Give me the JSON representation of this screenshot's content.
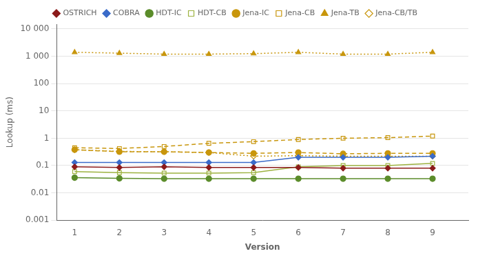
{
  "chart_data": {
    "type": "line",
    "x": [
      1,
      2,
      3,
      4,
      5,
      6,
      7,
      8,
      9
    ],
    "xlabel": "Version",
    "ylabel": "Lookup (ms)",
    "xlim": [
      0.6,
      9.8
    ],
    "xticks": [
      1,
      2,
      3,
      4,
      5,
      6,
      7,
      8,
      9
    ],
    "ylim": [
      0.001,
      15000
    ],
    "yticks": [
      0.001,
      0.01,
      0.1,
      1,
      10,
      100,
      {
        "value": 1000,
        "label": "1 000"
      },
      {
        "value": 10000,
        "label": "10 000"
      }
    ],
    "log": "y",
    "grid": "y",
    "legend": "top",
    "series": [
      {
        "name": "OSTRICH",
        "color": "#8B1A1A",
        "marker": "diamond",
        "line_style": "solid",
        "values": [
          0.09,
          0.085,
          0.09,
          0.085,
          0.085,
          0.085,
          0.08,
          0.08,
          0.08
        ]
      },
      {
        "name": "COBRA",
        "color": "#3A6BC9",
        "marker": "diamond",
        "line_style": "solid",
        "values": [
          0.13,
          0.13,
          0.13,
          0.13,
          0.13,
          0.2,
          0.2,
          0.2,
          0.22
        ]
      },
      {
        "name": "HDT-IC",
        "color": "#5B8C2A",
        "marker": "circle",
        "line_style": "solid",
        "values": [
          0.036,
          0.034,
          0.033,
          0.033,
          0.033,
          0.033,
          0.033,
          0.033,
          0.033
        ]
      },
      {
        "name": "HDT-CB",
        "color": "#9DB240",
        "marker": "open_square",
        "line_style": "solid",
        "values": [
          0.06,
          0.055,
          0.053,
          0.053,
          0.055,
          0.09,
          0.1,
          0.1,
          0.12
        ]
      },
      {
        "name": "Jena-IC",
        "color": "#C8960C",
        "marker": "circle",
        "line_style": "dashed",
        "values": [
          0.38,
          0.32,
          0.32,
          0.3,
          0.28,
          0.3,
          0.27,
          0.28,
          0.28
        ]
      },
      {
        "name": "Jena-CB",
        "color": "#C8960C",
        "marker": "open_square",
        "line_style": "dashed",
        "values": [
          0.45,
          0.42,
          0.5,
          0.65,
          0.75,
          0.9,
          1.0,
          1.05,
          1.2
        ]
      },
      {
        "name": "Jena-TB",
        "color": "#C8960C",
        "marker": "triangle",
        "line_style": "dotted",
        "values": [
          1400,
          1300,
          1200,
          1200,
          1250,
          1400,
          1200,
          1200,
          1400
        ]
      },
      {
        "name": "Jena-CB/TB",
        "color": "#C8960C",
        "marker": "open_diamond",
        "line_style": "dotted",
        "values": [
          0.38,
          0.33,
          0.32,
          0.3,
          0.22,
          0.23,
          0.22,
          0.22,
          0.22
        ]
      }
    ]
  }
}
